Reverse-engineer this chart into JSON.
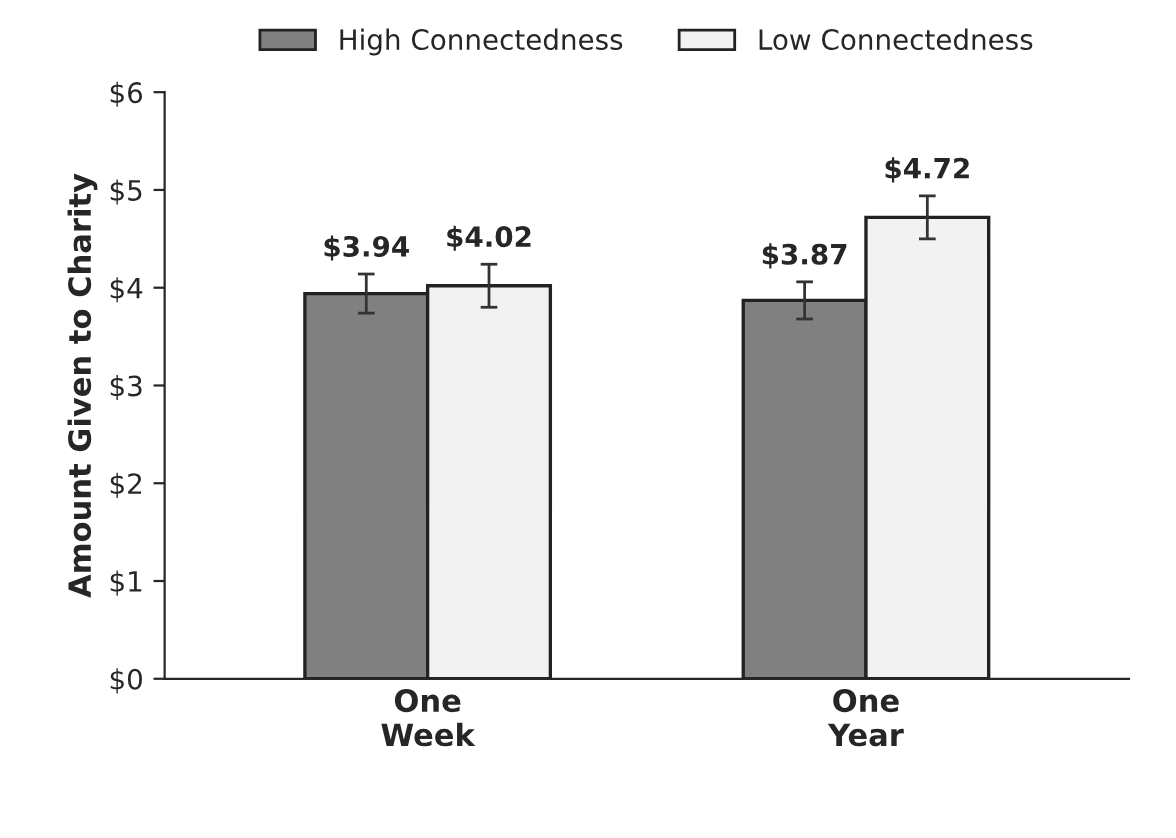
{
  "chart_data": {
    "type": "bar",
    "ylabel": "Amount Given to Charity",
    "categories": [
      "One\nWeek",
      "One\nYear"
    ],
    "series": [
      {
        "name": "High Connectedness",
        "color": "#808080",
        "values": [
          3.94,
          3.87
        ],
        "errors": [
          0.2,
          0.19
        ],
        "value_labels": [
          "$3.94",
          "$3.87"
        ]
      },
      {
        "name": "Low Connectedness",
        "color": "#f2f2f2",
        "values": [
          4.02,
          4.72
        ],
        "errors": [
          0.22,
          0.22
        ],
        "value_labels": [
          "$4.02",
          "$4.72"
        ]
      }
    ],
    "ylim": [
      0,
      6
    ],
    "yticks": [
      {
        "value": 0,
        "label": "$0"
      },
      {
        "value": 1,
        "label": "$1"
      },
      {
        "value": 2,
        "label": "$2"
      },
      {
        "value": 3,
        "label": "$3"
      },
      {
        "value": 4,
        "label": "$4"
      },
      {
        "value": 5,
        "label": "$5"
      },
      {
        "value": 6,
        "label": "$6"
      }
    ],
    "grid": false,
    "legend": "top"
  }
}
